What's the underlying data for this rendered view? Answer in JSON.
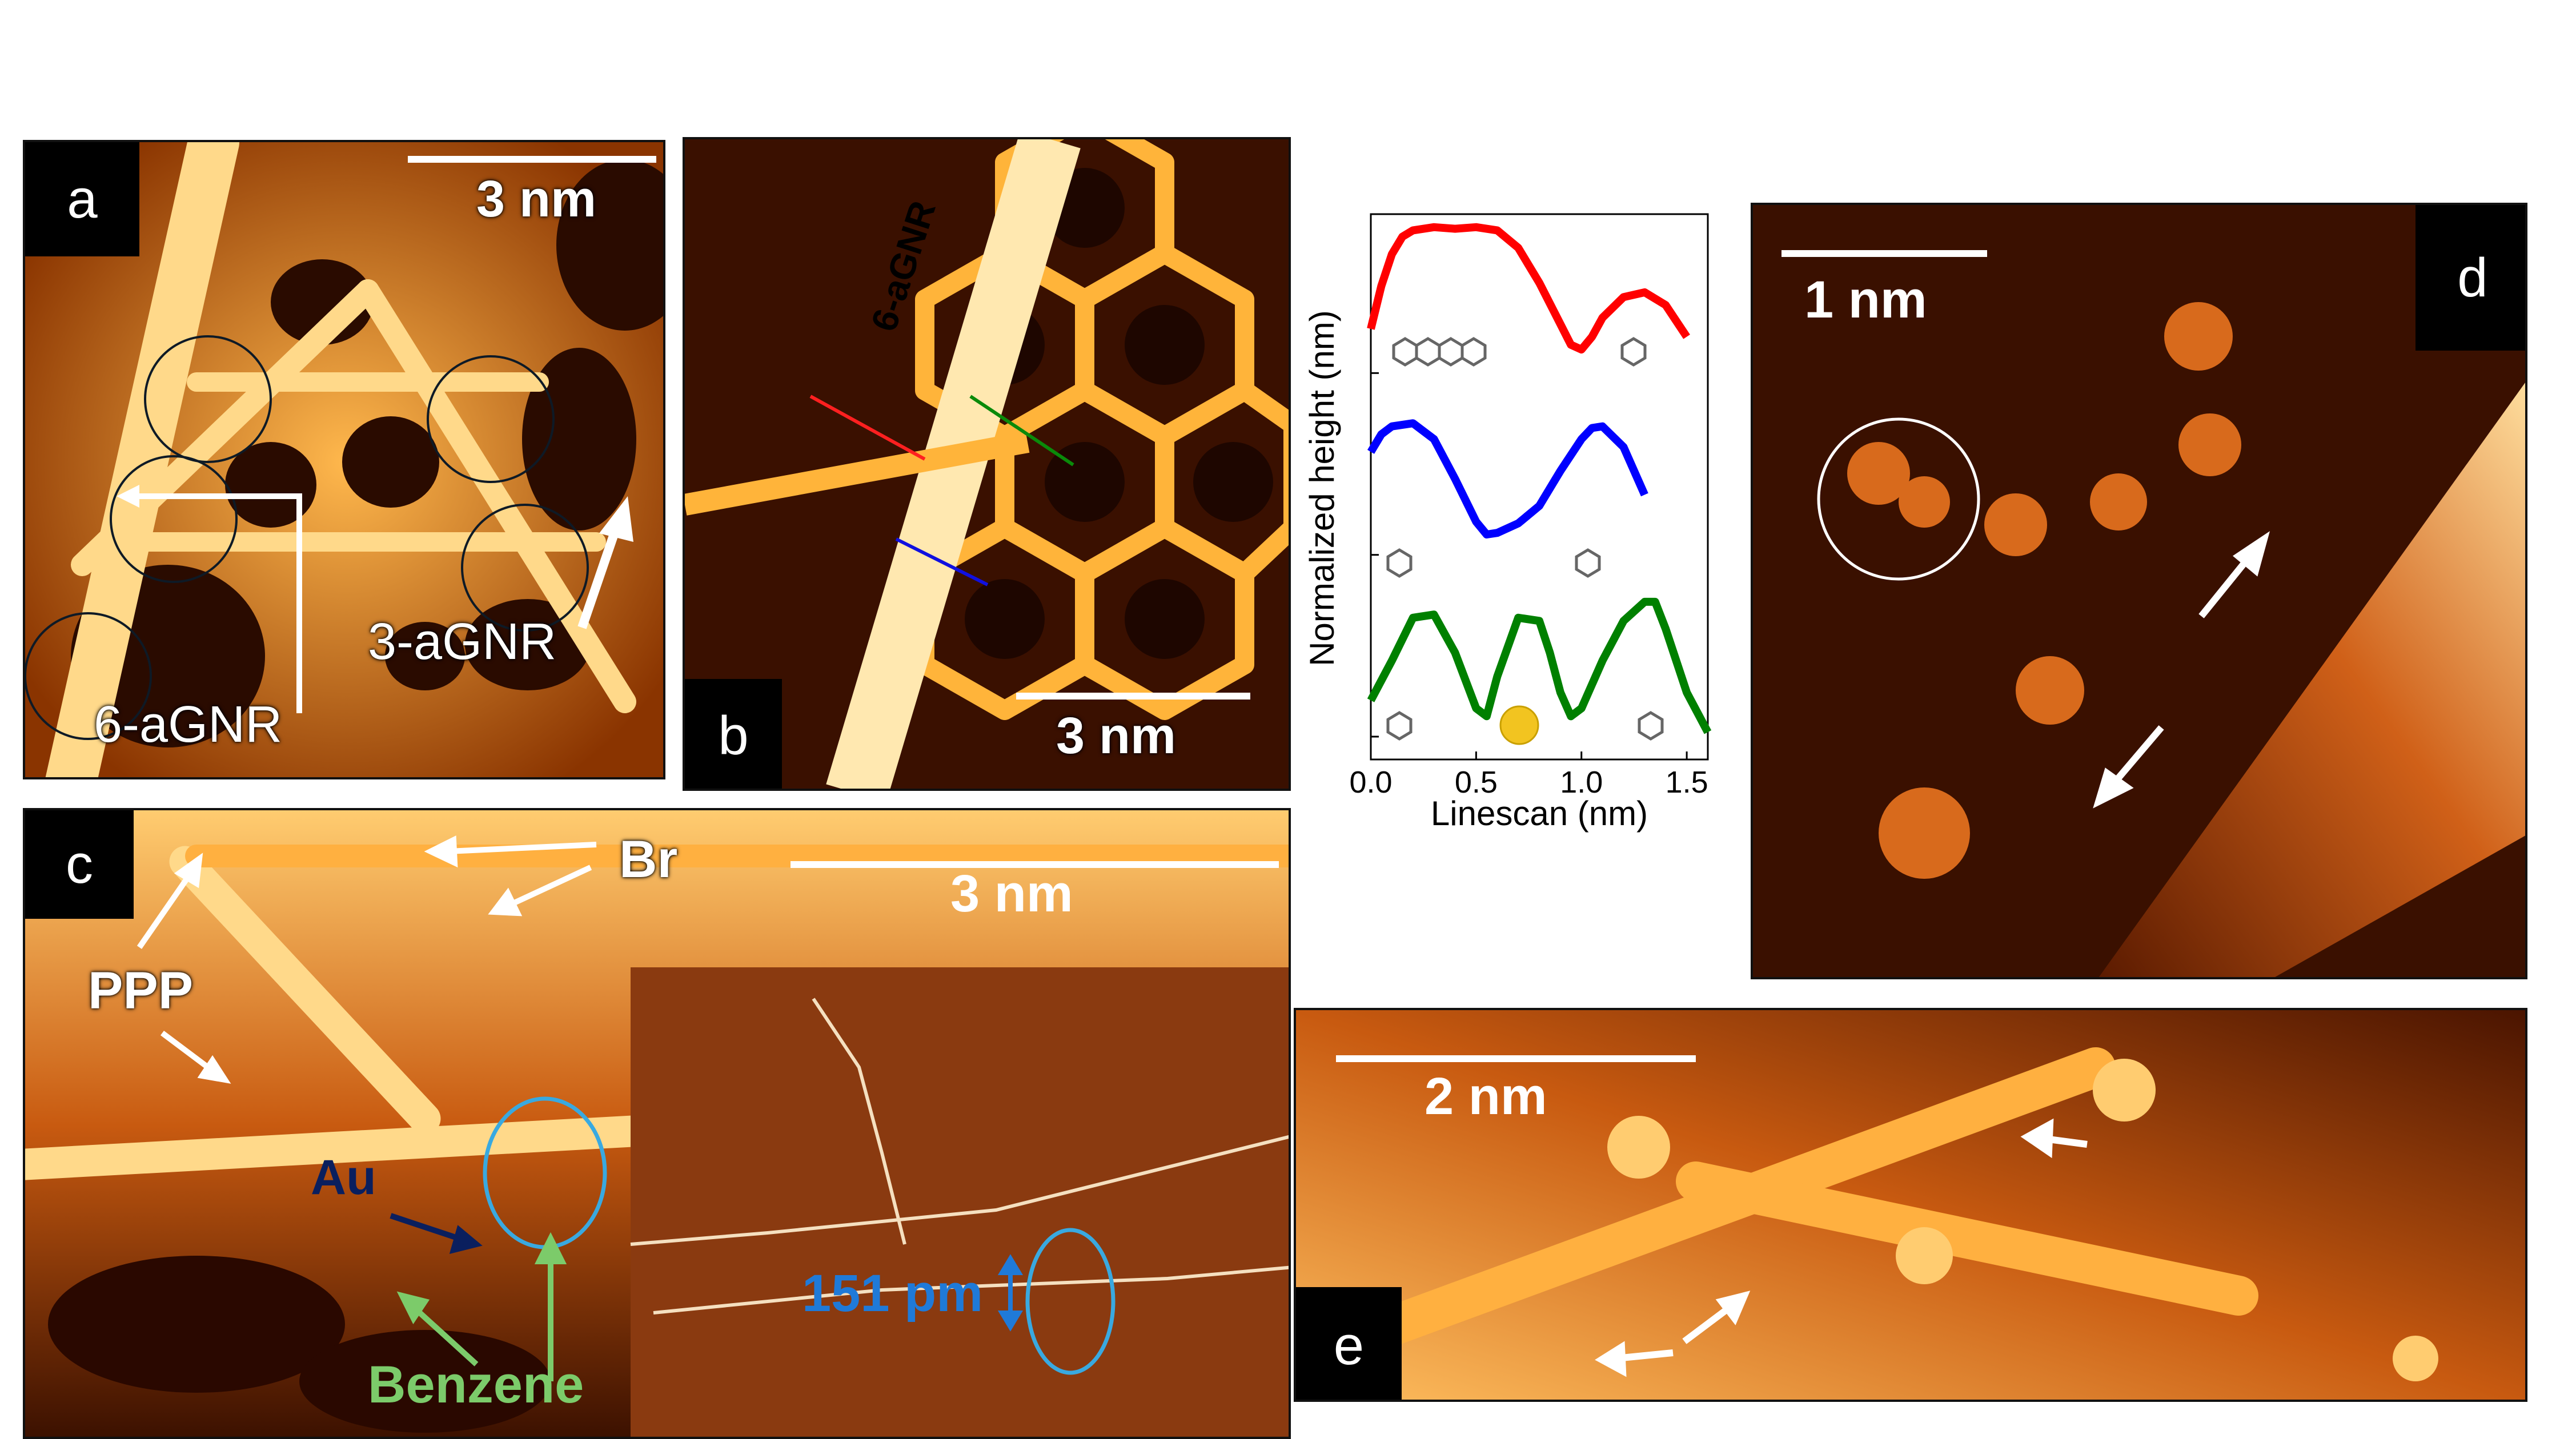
{
  "panel_a": {
    "tag": "a",
    "scale": "3 nm",
    "labels": {
      "six": "6-aGNR",
      "three": "3-aGNR"
    }
  },
  "panel_b": {
    "tag": "b",
    "scale": "3 nm",
    "ribbon": "6-aGNR"
  },
  "panel_c": {
    "tag": "c",
    "scale": "3 nm",
    "labels": {
      "br": "Br",
      "ppp": "PPP",
      "au": "Au",
      "benzene": "Benzene",
      "height": "151 pm"
    }
  },
  "panel_d": {
    "tag": "d",
    "scale": "1 nm"
  },
  "panel_e": {
    "tag": "e",
    "scale": "2 nm"
  },
  "chart_data": {
    "type": "line",
    "xlabel": "Linescan (nm)",
    "ylabel": "Normalized height (nm)",
    "xlim": [
      0.0,
      1.6
    ],
    "xticks": [
      "0.0",
      "0.5",
      "1.0",
      "1.5"
    ],
    "series": [
      {
        "color": "#ff0000",
        "x": [
          0.0,
          0.05,
          0.1,
          0.15,
          0.2,
          0.3,
          0.4,
          0.5,
          0.6,
          0.7,
          0.8,
          0.9,
          0.95,
          1.0,
          1.05,
          1.1,
          1.2,
          1.3,
          1.4,
          1.5
        ],
        "y": [
          0.35,
          0.62,
          0.82,
          0.93,
          0.97,
          0.99,
          0.98,
          0.99,
          0.97,
          0.86,
          0.64,
          0.38,
          0.25,
          0.22,
          0.3,
          0.42,
          0.55,
          0.58,
          0.5,
          0.3
        ]
      },
      {
        "color": "#0000ff",
        "x": [
          0.0,
          0.05,
          0.1,
          0.2,
          0.3,
          0.4,
          0.5,
          0.55,
          0.6,
          0.7,
          0.8,
          0.9,
          1.0,
          1.05,
          1.1,
          1.2,
          1.3
        ],
        "y": [
          0.72,
          0.83,
          0.88,
          0.9,
          0.8,
          0.55,
          0.28,
          0.2,
          0.21,
          0.27,
          0.38,
          0.6,
          0.8,
          0.87,
          0.88,
          0.75,
          0.45
        ]
      },
      {
        "color": "#008000",
        "x": [
          0.0,
          0.1,
          0.2,
          0.3,
          0.4,
          0.5,
          0.55,
          0.6,
          0.7,
          0.8,
          0.85,
          0.9,
          0.95,
          1.0,
          1.1,
          1.2,
          1.3,
          1.35,
          1.4,
          1.5,
          1.6
        ],
        "y": [
          0.3,
          0.55,
          0.82,
          0.84,
          0.6,
          0.25,
          0.2,
          0.45,
          0.82,
          0.8,
          0.6,
          0.35,
          0.2,
          0.25,
          0.55,
          0.8,
          0.92,
          0.92,
          0.75,
          0.35,
          0.1
        ]
      }
    ]
  }
}
